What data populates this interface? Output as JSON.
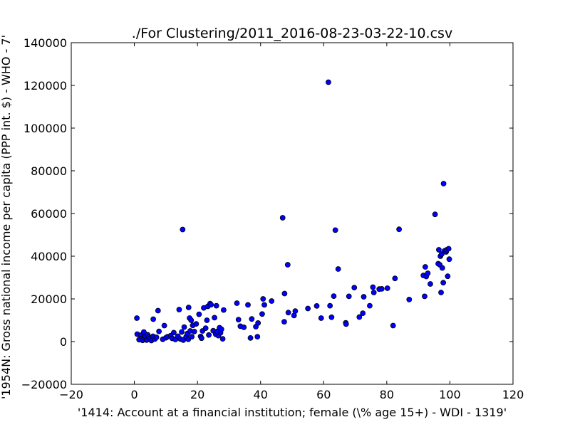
{
  "chart_data": {
    "type": "scatter",
    "title": "./For Clustering/2011_2016-08-23-03-22-10.csv",
    "xlabel": "'1414: Account at a financial institution; female  (\\% age 15+) - WDI - 1319'",
    "ylabel": "'1954N: Gross national income per capita (PPP int. $) - WHO - 7'",
    "xlim": [
      -20,
      120
    ],
    "ylim": [
      -20000,
      140000
    ],
    "xticks": [
      -20,
      0,
      20,
      40,
      60,
      80,
      100,
      120
    ],
    "yticks": [
      -20000,
      0,
      20000,
      40000,
      60000,
      80000,
      100000,
      120000,
      140000
    ],
    "xtick_labels": [
      "−20",
      "0",
      "20",
      "40",
      "60",
      "80",
      "100",
      "120"
    ],
    "ytick_labels": [
      "−20000",
      "0",
      "20000",
      "40000",
      "60000",
      "80000",
      "100000",
      "120000",
      "140000"
    ],
    "grid": false,
    "marker_color": "#0000ff",
    "points": [
      [
        0.8,
        11000
      ],
      [
        0.9,
        3500
      ],
      [
        1.5,
        900
      ],
      [
        2.0,
        3000
      ],
      [
        2.3,
        1400
      ],
      [
        2.6,
        600
      ],
      [
        3.0,
        4500
      ],
      [
        3.2,
        1800
      ],
      [
        3.5,
        2600
      ],
      [
        3.9,
        700
      ],
      [
        4.2,
        3200
      ],
      [
        4.6,
        2100
      ],
      [
        5.1,
        1500
      ],
      [
        5.4,
        500
      ],
      [
        5.9,
        2500
      ],
      [
        6.0,
        10500
      ],
      [
        6.5,
        1200
      ],
      [
        7.0,
        2000
      ],
      [
        7.5,
        14500
      ],
      [
        7.8,
        4800
      ],
      [
        9.0,
        1100
      ],
      [
        9.5,
        7500
      ],
      [
        10.0,
        1800
      ],
      [
        10.5,
        2300
      ],
      [
        11.5,
        2800
      ],
      [
        12.0,
        1500
      ],
      [
        12.5,
        4200
      ],
      [
        13.0,
        1000
      ],
      [
        13.8,
        2500
      ],
      [
        14.2,
        15000
      ],
      [
        14.6,
        1200
      ],
      [
        15.0,
        4500
      ],
      [
        15.3,
        52500
      ],
      [
        15.5,
        700
      ],
      [
        15.8,
        6800
      ],
      [
        16.4,
        2200
      ],
      [
        16.8,
        3800
      ],
      [
        17.1,
        1100
      ],
      [
        17.2,
        16000
      ],
      [
        17.5,
        11000
      ],
      [
        17.7,
        5000
      ],
      [
        18.0,
        10000
      ],
      [
        18.2,
        2300
      ],
      [
        18.5,
        7600
      ],
      [
        19.0,
        4700
      ],
      [
        19.6,
        8300
      ],
      [
        20.5,
        12800
      ],
      [
        21.0,
        2400
      ],
      [
        21.3,
        1600
      ],
      [
        21.6,
        5000
      ],
      [
        22.0,
        15800
      ],
      [
        22.6,
        6300
      ],
      [
        23.0,
        10000
      ],
      [
        23.3,
        16500
      ],
      [
        23.6,
        3100
      ],
      [
        24.0,
        17800
      ],
      [
        24.3,
        17300
      ],
      [
        25.0,
        5100
      ],
      [
        25.4,
        11200
      ],
      [
        25.8,
        3400
      ],
      [
        26.0,
        16800
      ],
      [
        26.3,
        4800
      ],
      [
        26.6,
        2800
      ],
      [
        27.0,
        6500
      ],
      [
        27.3,
        4100
      ],
      [
        27.6,
        5800
      ],
      [
        28.0,
        1300
      ],
      [
        28.3,
        14800
      ],
      [
        32.5,
        18000
      ],
      [
        33.0,
        10300
      ],
      [
        33.6,
        7200
      ],
      [
        34.7,
        6700
      ],
      [
        36.0,
        17200
      ],
      [
        36.8,
        1700
      ],
      [
        37.2,
        10600
      ],
      [
        38.5,
        7000
      ],
      [
        39.0,
        2300
      ],
      [
        39.2,
        8700
      ],
      [
        40.5,
        12900
      ],
      [
        40.8,
        20000
      ],
      [
        41.2,
        17200
      ],
      [
        43.5,
        19000
      ],
      [
        47.0,
        58000
      ],
      [
        47.6,
        22500
      ],
      [
        47.5,
        9300
      ],
      [
        48.6,
        36000
      ],
      [
        48.8,
        13600
      ],
      [
        50.6,
        12200
      ],
      [
        51.0,
        14300
      ],
      [
        55.0,
        15500
      ],
      [
        57.8,
        16700
      ],
      [
        59.2,
        11000
      ],
      [
        61.5,
        121500
      ],
      [
        62.0,
        16800
      ],
      [
        62.5,
        11400
      ],
      [
        63.2,
        21300
      ],
      [
        63.7,
        52200
      ],
      [
        64.6,
        34000
      ],
      [
        67.0,
        8800
      ],
      [
        67.1,
        8200
      ],
      [
        68.0,
        21200
      ],
      [
        69.7,
        25300
      ],
      [
        71.3,
        11500
      ],
      [
        72.4,
        13300
      ],
      [
        72.7,
        21000
      ],
      [
        74.6,
        16800
      ],
      [
        75.6,
        25500
      ],
      [
        75.9,
        23000
      ],
      [
        77.6,
        24600
      ],
      [
        78.4,
        24700
      ],
      [
        80.2,
        25000
      ],
      [
        82.0,
        7500
      ],
      [
        82.6,
        29600
      ],
      [
        83.9,
        52600
      ],
      [
        87.1,
        19700
      ],
      [
        91.6,
        31000
      ],
      [
        92.0,
        21200
      ],
      [
        92.2,
        35000
      ],
      [
        92.5,
        30500
      ],
      [
        93.0,
        32000
      ],
      [
        93.8,
        27000
      ],
      [
        95.3,
        59600
      ],
      [
        96.3,
        36500
      ],
      [
        96.5,
        43000
      ],
      [
        96.8,
        36000
      ],
      [
        97.0,
        40000
      ],
      [
        97.2,
        23000
      ],
      [
        97.4,
        41000
      ],
      [
        97.6,
        34500
      ],
      [
        97.9,
        27600
      ],
      [
        98.0,
        74000
      ],
      [
        98.3,
        42500
      ],
      [
        98.8,
        42000
      ],
      [
        99.0,
        43000
      ],
      [
        99.3,
        30600
      ],
      [
        99.6,
        43500
      ],
      [
        99.8,
        38600
      ]
    ]
  }
}
